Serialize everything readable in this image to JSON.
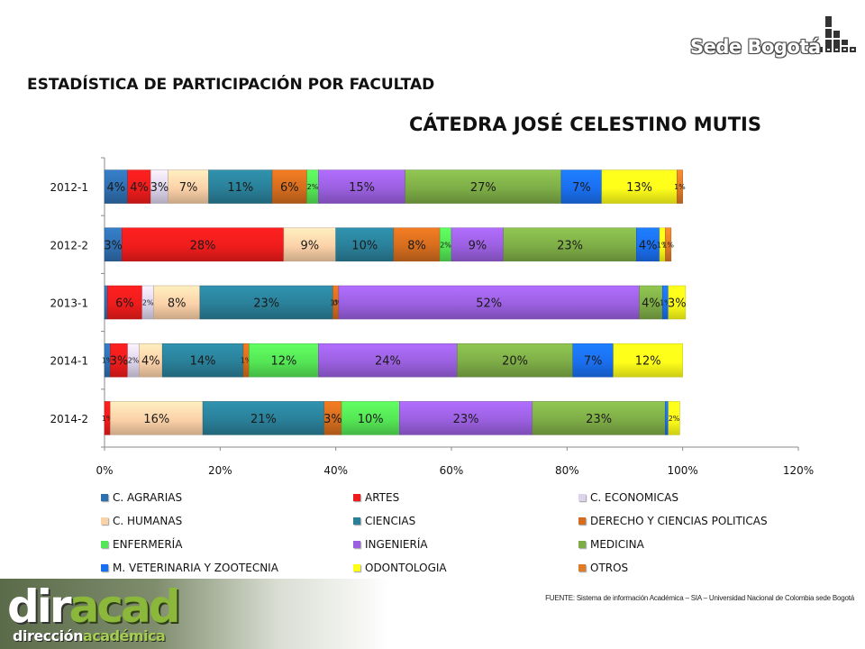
{
  "logos": {
    "top_right": "Sede Bogotá",
    "bottom_left_main_a": "dir",
    "bottom_left_main_b": "acad",
    "bottom_left_sub_a": "dirección",
    "bottom_left_sub_b": "académica"
  },
  "heading": "ESTADÍSTICA DE PARTICIPACIÓN POR FACULTAD",
  "source_note": "FUENTE: Sistema de información Académica – SIA – Universidad Nacional de Colombia sede Bogotá",
  "chart_data": {
    "type": "bar",
    "orientation": "horizontal",
    "stacked": true,
    "title": "CÁTEDRA JOSÉ CELESTINO MUTIS",
    "xlim": [
      0,
      120
    ],
    "x_ticks": [
      "0%",
      "20%",
      "40%",
      "60%",
      "80%",
      "100%",
      "120%"
    ],
    "categories": [
      "2012-1",
      "2012-2",
      "2013-1",
      "2014-1",
      "2014-2"
    ],
    "legend_position": "bottom",
    "series": [
      {
        "name": "C. AGRARIAS",
        "color": "#2f6fb0",
        "values": [
          4,
          3,
          0.5,
          1,
          0
        ],
        "labels": [
          "4%",
          "3%",
          "",
          "1%",
          ""
        ]
      },
      {
        "name": "ARTES",
        "color": "#f01c1c",
        "values": [
          4,
          28,
          6,
          3,
          1
        ],
        "labels": [
          "4%",
          "28%",
          "6%",
          "3%",
          "1%"
        ]
      },
      {
        "name": "C. ECONOMICAS",
        "color": "#dcd4ec",
        "values": [
          3,
          0,
          2,
          2,
          0
        ],
        "labels": [
          "3%",
          "",
          "2%",
          "2%",
          ""
        ]
      },
      {
        "name": "C. HUMANAS",
        "color": "#fbd1a8",
        "values": [
          7,
          9,
          8,
          4,
          16
        ],
        "labels": [
          "7%",
          "9%",
          "8%",
          "4%",
          "16%"
        ]
      },
      {
        "name": "CIENCIAS",
        "color": "#2a8099",
        "values": [
          11,
          10,
          23,
          14,
          21
        ],
        "labels": [
          "11%",
          "10%",
          "23%",
          "14%",
          "21%"
        ]
      },
      {
        "name": "DERECHO Y CIENCIAS POLITICAS",
        "color": "#d56d1e",
        "values": [
          6,
          8,
          1,
          1,
          3
        ],
        "labels": [
          "6%",
          "8%",
          "1%",
          "1%",
          "3%"
        ]
      },
      {
        "name": "ENFERMERÍA",
        "color": "#55e655",
        "values": [
          2,
          2,
          0,
          12,
          10
        ],
        "labels": [
          "2%",
          "2%",
          "0%",
          "12%",
          "10%"
        ]
      },
      {
        "name": "INGENIERÍA",
        "color": "#9b60e0",
        "values": [
          15,
          9,
          52,
          24,
          23
        ],
        "labels": [
          "15%",
          "9%",
          "52%",
          "24%",
          "23%"
        ]
      },
      {
        "name": "MEDICINA",
        "color": "#7ead47",
        "values": [
          27,
          23,
          4,
          20,
          23
        ],
        "labels": [
          "27%",
          "23%",
          "4%",
          "20%",
          "23%"
        ]
      },
      {
        "name": "M. VETERINARIA Y ZOOTECNIA",
        "color": "#1a6ff0",
        "values": [
          7,
          4,
          1,
          7,
          0.5
        ],
        "labels": [
          "7%",
          "4%",
          "1%",
          "7%",
          ""
        ]
      },
      {
        "name": "ODONTOLOGIA",
        "color": "#ffff1a",
        "values": [
          13,
          1,
          3,
          12,
          2
        ],
        "labels": [
          "13%",
          "1%",
          "3%",
          "12%",
          "2%"
        ]
      },
      {
        "name": "OTROS",
        "color": "#e07b27",
        "values": [
          1,
          1,
          0,
          0,
          0
        ],
        "labels": [
          "1%",
          "1%",
          "",
          "",
          ""
        ]
      }
    ]
  }
}
